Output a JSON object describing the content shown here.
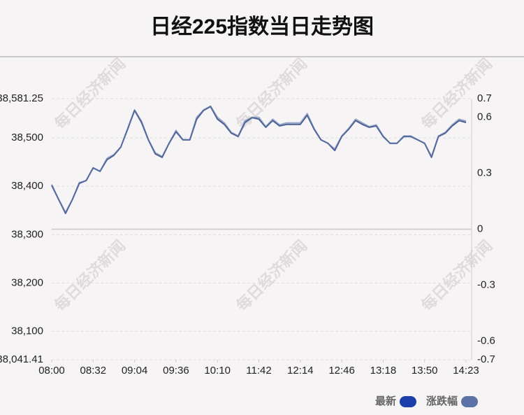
{
  "chart_data": {
    "type": "line",
    "title": "日经225指数当日走势图",
    "watermark": "每日经济新闻",
    "xlim": [
      0,
      60
    ],
    "xticks": [
      {
        "value": 0,
        "label": "08:00"
      },
      {
        "value": 6,
        "label": "08:32"
      },
      {
        "value": 12,
        "label": "09:04"
      },
      {
        "value": 18,
        "label": "09:36"
      },
      {
        "value": 24,
        "label": "10:10"
      },
      {
        "value": 30,
        "label": "11:42"
      },
      {
        "value": 36,
        "label": "12:14"
      },
      {
        "value": 42,
        "label": "12:46"
      },
      {
        "value": 48,
        "label": "13:18"
      },
      {
        "value": 54,
        "label": "13:50"
      },
      {
        "value": 60,
        "label": "14:23"
      }
    ],
    "ylim": [
      38041.41,
      38581.25
    ],
    "yticks": [
      {
        "value": 38041.41,
        "label": "38,041.41"
      },
      {
        "value": 38100,
        "label": "38,100"
      },
      {
        "value": 38200,
        "label": "38,200"
      },
      {
        "value": 38300,
        "label": "38,300"
      },
      {
        "value": 38400,
        "label": "38,400"
      },
      {
        "value": 38500,
        "label": "38,500"
      },
      {
        "value": 38581.25,
        "label": "38,581.25"
      }
    ],
    "y2lim": [
      -0.7,
      0.7
    ],
    "y2ticks": [
      -0.7,
      -0.6,
      -0.3,
      0,
      0.3,
      0.6,
      0.7
    ],
    "grid": true,
    "legend": "bottom-right",
    "series": [
      {
        "name": "最新",
        "color": "#1a3fa8",
        "line_color": "#4a5f94",
        "values": [
          38402,
          38373,
          38344,
          38373,
          38406,
          38412,
          38438,
          38431,
          38455,
          38464,
          38481,
          38518,
          38557,
          38532,
          38496,
          38467,
          38460,
          38489,
          38513,
          38496,
          38496,
          38539,
          38557,
          38565,
          38539,
          38528,
          38510,
          38503,
          38532,
          38542,
          38539,
          38522,
          38536,
          38525,
          38528,
          38528,
          38528,
          38547,
          38518,
          38496,
          38489,
          38474,
          38503,
          38518,
          38536,
          38528,
          38522,
          38525,
          38503,
          38489,
          38489,
          38503,
          38503,
          38496,
          38489,
          38460,
          38503,
          38510,
          38525,
          38536,
          38532
        ]
      },
      {
        "name": "涨跌幅",
        "color": "#5b73a6",
        "axis": "y2",
        "values": [
          0.24,
          0.16,
          0.09,
          0.16,
          0.25,
          0.26,
          0.33,
          0.31,
          0.38,
          0.4,
          0.44,
          0.54,
          0.64,
          0.58,
          0.48,
          0.41,
          0.39,
          0.46,
          0.53,
          0.48,
          0.48,
          0.6,
          0.64,
          0.66,
          0.6,
          0.57,
          0.52,
          0.5,
          0.58,
          0.6,
          0.6,
          0.55,
          0.59,
          0.56,
          0.57,
          0.57,
          0.57,
          0.62,
          0.54,
          0.48,
          0.46,
          0.43,
          0.5,
          0.54,
          0.59,
          0.57,
          0.55,
          0.56,
          0.5,
          0.46,
          0.46,
          0.5,
          0.5,
          0.48,
          0.46,
          0.39,
          0.5,
          0.52,
          0.56,
          0.59,
          0.58
        ]
      }
    ]
  }
}
